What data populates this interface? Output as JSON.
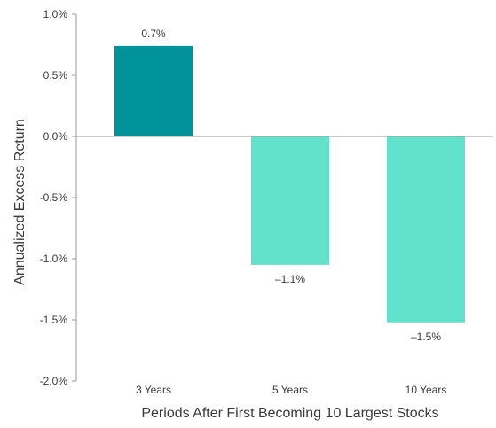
{
  "chart_data": {
    "type": "bar",
    "categories": [
      "3 Years",
      "5 Years",
      "10 Years"
    ],
    "values": [
      0.74,
      -1.05,
      -1.52
    ],
    "data_labels": [
      "0.7%",
      "–1.1%",
      "–1.5%"
    ],
    "bar_colors": [
      "#00939b",
      "#62e1cb",
      "#62e1cb"
    ],
    "title": "",
    "xlabel": "Periods After First Becoming 10 Largest Stocks",
    "ylabel": "Annualized Excess Return",
    "ylim": [
      -2.0,
      1.0
    ],
    "yticks": [
      1.0,
      0.5,
      0.0,
      -0.5,
      -1.0,
      -1.5,
      -2.0
    ],
    "ytick_labels": [
      "1.0%",
      "0.5%",
      "0.0%",
      "-0.5%",
      "-1.0%",
      "-1.5%",
      "-2.0%"
    ],
    "grid": false,
    "legend": "none",
    "colors": {
      "axis": "#9a9a9a",
      "text": "#3a3a3a",
      "background": "#ffffff"
    }
  }
}
